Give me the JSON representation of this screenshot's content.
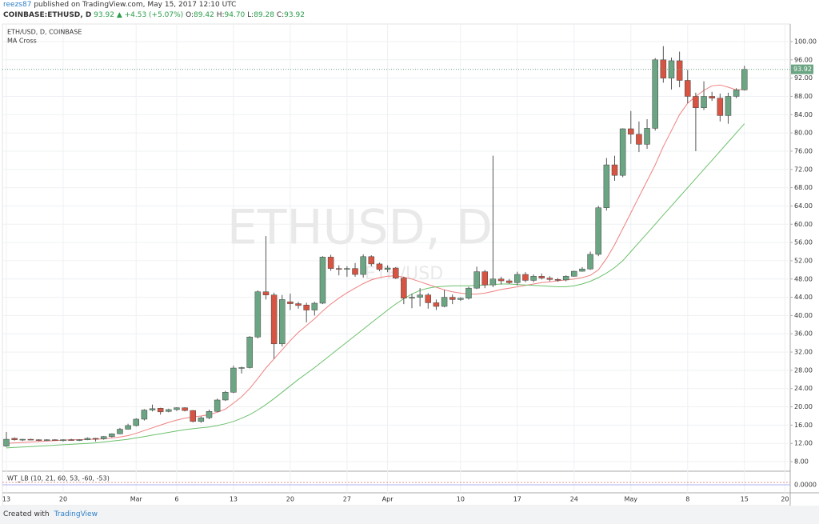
{
  "header": {
    "author": "reezs87",
    "published": "published on TradingView.com, May 15, 2017 12:10 UTC",
    "symbol": "COINBASE:ETHUSD, D",
    "last": "93.92",
    "change": "▲ +4.53 (+5.07%)",
    "ohlc": [
      {
        "label": "O:",
        "value": "89.42"
      },
      {
        "label": "H:",
        "value": "94.70"
      },
      {
        "label": "L:",
        "value": "89.28"
      },
      {
        "label": "C:",
        "value": "93.92"
      }
    ]
  },
  "footer": {
    "created": "Created with",
    "brand": "TradingView"
  },
  "indicator": {
    "label": "WT_LB (10, 21, 60, 53, -60, -53)",
    "tick": "0.0000"
  },
  "chart_data": {
    "type": "candlestick",
    "title": "ETH/USD, D, COINBASE",
    "subtitle": "MA Cross",
    "watermark": "ETHUSD, D",
    "watermark_sub": "ETH/USD",
    "categories": [
      "13",
      null,
      null,
      null,
      null,
      null,
      null,
      "20",
      null,
      null,
      null,
      null,
      null,
      null,
      null,
      null,
      "Mar",
      null,
      null,
      null,
      null,
      "6",
      null,
      null,
      null,
      null,
      null,
      null,
      "13",
      null,
      null,
      null,
      null,
      null,
      null,
      "20",
      null,
      null,
      null,
      null,
      null,
      null,
      "27",
      null,
      null,
      null,
      null,
      "Apr",
      null,
      null,
      null,
      null,
      null,
      null,
      null,
      null,
      "10",
      null,
      null,
      null,
      null,
      null,
      null,
      "17",
      null,
      null,
      null,
      null,
      null,
      null,
      "24",
      null,
      null,
      null,
      null,
      null,
      null,
      "May",
      null,
      null,
      null,
      null,
      null,
      null,
      "8",
      null,
      null,
      null,
      null,
      null,
      null,
      "15",
      null,
      null,
      null,
      null,
      "20"
    ],
    "open": [
      11.4,
      13.1,
      12.8,
      12.9,
      12.8,
      12.7,
      12.8,
      12.6,
      12.8,
      12.7,
      12.8,
      13.1,
      13.0,
      13.5,
      14.1,
      15.1,
      15.9,
      17.3,
      19.3,
      19.7,
      19.0,
      19.4,
      19.8,
      19.2,
      16.8,
      17.6,
      19.0,
      21.5,
      23.2,
      28.5,
      28.6,
      35.3,
      45.2,
      44.5,
      33.8,
      43.0,
      42.6,
      42.3,
      41.2,
      42.7,
      52.8,
      50.3,
      50.2,
      50.3,
      49.0,
      52.9,
      51.3,
      50.1,
      50.4,
      48.2,
      43.8,
      44.0,
      44.5,
      42.8,
      42.0,
      44.0,
      43.5,
      43.8,
      46.0,
      49.6,
      46.7,
      48.0,
      47.6,
      47.2,
      49.0,
      47.7,
      48.6,
      48.2,
      47.9,
      47.8,
      48.6,
      49.7,
      50.2,
      53.4,
      63.6,
      73.0,
      70.7,
      80.9,
      79.7,
      77.5,
      81.0,
      96.0,
      92.0,
      95.8,
      91.5,
      88.0,
      85.5,
      88.0,
      87.6,
      83.8,
      88.0,
      89.42,
      null,
      null,
      null,
      null,
      null
    ],
    "high": [
      14.5,
      13.3,
      13.0,
      13.0,
      12.9,
      12.9,
      12.9,
      12.9,
      13.0,
      12.9,
      13.3,
      13.2,
      13.6,
      14.2,
      15.4,
      16.3,
      17.5,
      19.5,
      20.5,
      19.8,
      19.6,
      19.9,
      19.9,
      19.3,
      17.9,
      19.4,
      21.8,
      23.5,
      29.0,
      28.8,
      35.5,
      45.5,
      57.4,
      45.0,
      44.5,
      44.8,
      43.0,
      42.8,
      43.0,
      53.0,
      53.3,
      51.0,
      50.8,
      51.5,
      53.4,
      53.2,
      51.6,
      51.0,
      50.6,
      48.5,
      44.8,
      46.0,
      44.9,
      43.5,
      45.6,
      44.6,
      44.0,
      46.3,
      50.7,
      50.0,
      75.0,
      48.5,
      48.0,
      49.6,
      49.5,
      49.0,
      49.2,
      48.6,
      48.2,
      48.8,
      49.8,
      50.6,
      54.0,
      64.0,
      74.5,
      75.0,
      81.0,
      84.8,
      82.5,
      83.0,
      96.4,
      99.0,
      96.5,
      97.8,
      93.8,
      88.8,
      91.3,
      89.0,
      88.6,
      88.8,
      89.8,
      94.7,
      null,
      null,
      null,
      null,
      null
    ],
    "low": [
      11.2,
      12.6,
      12.5,
      12.7,
      12.5,
      12.6,
      12.6,
      12.4,
      12.6,
      12.5,
      12.7,
      12.4,
      12.8,
      13.3,
      14.0,
      15.0,
      15.7,
      17.0,
      19.0,
      18.3,
      18.8,
      19.1,
      19.0,
      16.6,
      16.5,
      17.3,
      18.9,
      21.3,
      23.0,
      27.3,
      28.4,
      35.0,
      43.5,
      30.5,
      33.2,
      41.2,
      41.5,
      38.5,
      40.0,
      42.5,
      49.8,
      48.8,
      48.5,
      48.5,
      48.3,
      50.8,
      49.7,
      49.5,
      48.0,
      42.5,
      41.6,
      42.0,
      41.5,
      41.2,
      41.8,
      42.5,
      43.2,
      43.5,
      45.8,
      46.0,
      46.2,
      46.8,
      46.9,
      46.6,
      47.3,
      47.3,
      47.9,
      47.5,
      47.4,
      47.5,
      48.5,
      49.6,
      50.0,
      53.0,
      63.0,
      69.5,
      70.3,
      77.6,
      75.8,
      76.5,
      80.5,
      91.0,
      89.5,
      90.0,
      86.5,
      76.0,
      85.0,
      87.0,
      82.5,
      82.0,
      87.6,
      89.28,
      null,
      null,
      null,
      null,
      null
    ],
    "close": [
      12.9,
      12.8,
      12.9,
      12.8,
      12.7,
      12.8,
      12.7,
      12.8,
      12.7,
      12.8,
      13.1,
      13.0,
      13.5,
      14.1,
      15.1,
      15.9,
      17.3,
      19.3,
      19.6,
      18.9,
      19.4,
      19.8,
      19.2,
      16.8,
      17.6,
      19.0,
      21.5,
      23.2,
      28.5,
      28.6,
      35.3,
      45.2,
      44.5,
      33.8,
      43.5,
      42.6,
      42.2,
      41.2,
      42.7,
      52.8,
      50.3,
      50.2,
      50.3,
      49.0,
      52.9,
      51.3,
      50.1,
      50.4,
      48.2,
      43.8,
      44.0,
      44.5,
      42.8,
      42.0,
      44.0,
      43.5,
      43.8,
      46.0,
      49.6,
      46.7,
      48.0,
      47.6,
      47.2,
      49.0,
      47.7,
      48.6,
      48.2,
      47.9,
      47.8,
      48.6,
      49.7,
      50.2,
      53.4,
      63.6,
      73.0,
      70.7,
      80.9,
      79.7,
      77.5,
      81.0,
      96.0,
      92.0,
      95.8,
      91.5,
      88.0,
      85.5,
      88.0,
      87.6,
      83.8,
      88.0,
      89.4,
      93.92,
      null,
      null,
      null,
      null,
      null
    ],
    "up_color": "#6ba583",
    "down_color": "#d75442",
    "lines": [
      {
        "color": "#f08080",
        "values": [
          12.0,
          12.1,
          12.2,
          12.3,
          12.4,
          12.5,
          12.6,
          12.7,
          12.8,
          12.8,
          12.9,
          12.9,
          13.0,
          13.2,
          13.4,
          13.7,
          14.2,
          14.8,
          15.4,
          16.0,
          16.6,
          17.1,
          17.5,
          17.8,
          18.0,
          18.3,
          18.8,
          19.5,
          20.8,
          22.2,
          24.0,
          26.2,
          28.5,
          30.5,
          32.5,
          34.5,
          36.3,
          37.8,
          39.3,
          41.0,
          42.5,
          43.8,
          45.0,
          46.0,
          47.0,
          47.8,
          48.3,
          48.6,
          48.7,
          48.4,
          48.0,
          47.4,
          46.8,
          46.2,
          45.6,
          45.2,
          44.9,
          44.7,
          44.7,
          44.9,
          45.3,
          45.7,
          46.0,
          46.3,
          46.6,
          46.9,
          47.2,
          47.4,
          47.6,
          47.8,
          48.0,
          48.3,
          48.8,
          50.0,
          52.5,
          55.5,
          59.0,
          62.5,
          66.0,
          69.5,
          73.0,
          77.0,
          80.5,
          84.0,
          86.5,
          88.0,
          89.3,
          90.3,
          90.5,
          90.0,
          89.4,
          89.6,
          null,
          null,
          null,
          null,
          null
        ]
      },
      {
        "color": "#6cc06c",
        "values": [
          11.0,
          11.1,
          11.2,
          11.3,
          11.4,
          11.5,
          11.6,
          11.7,
          11.8,
          11.9,
          12.0,
          12.1,
          12.3,
          12.5,
          12.7,
          12.9,
          13.2,
          13.5,
          13.8,
          14.1,
          14.4,
          14.7,
          15.0,
          15.2,
          15.4,
          15.6,
          15.9,
          16.3,
          16.8,
          17.5,
          18.3,
          19.3,
          20.5,
          21.8,
          23.2,
          24.6,
          26.0,
          27.3,
          28.6,
          30.0,
          31.4,
          32.8,
          34.2,
          35.6,
          37.0,
          38.4,
          39.8,
          41.2,
          42.5,
          43.7,
          44.7,
          45.5,
          46.0,
          46.3,
          46.4,
          46.5,
          46.5,
          46.5,
          46.6,
          46.7,
          46.8,
          46.9,
          46.9,
          46.8,
          46.7,
          46.6,
          46.5,
          46.4,
          46.3,
          46.3,
          46.5,
          46.9,
          47.5,
          48.3,
          49.3,
          50.5,
          52.0,
          54.0,
          56.0,
          58.0,
          60.0,
          62.0,
          64.0,
          66.0,
          68.0,
          70.0,
          72.0,
          74.0,
          76.0,
          78.0,
          80.0,
          82.0,
          null,
          null,
          null,
          null,
          null
        ]
      }
    ],
    "ylim": [
      6.08,
      103.85
    ],
    "yticks": [
      {
        "value": 8,
        "label": "8.00"
      },
      {
        "value": 12,
        "label": "12.00"
      },
      {
        "value": 16,
        "label": "16.00"
      },
      {
        "value": 20,
        "label": "20.00"
      },
      {
        "value": 24,
        "label": "24.00"
      },
      {
        "value": 28,
        "label": "28.00"
      },
      {
        "value": 32,
        "label": "32.00"
      },
      {
        "value": 36,
        "label": "36.00"
      },
      {
        "value": 40,
        "label": "40.00"
      },
      {
        "value": 44,
        "label": "44.00"
      },
      {
        "value": 48,
        "label": "48.00"
      },
      {
        "value": 52,
        "label": "52.00"
      },
      {
        "value": 56,
        "label": "56.00"
      },
      {
        "value": 60,
        "label": "60.00"
      },
      {
        "value": 64,
        "label": "64.00"
      },
      {
        "value": 68,
        "label": "68.00"
      },
      {
        "value": 72,
        "label": "72.00"
      },
      {
        "value": 76,
        "label": "76.00"
      },
      {
        "value": 80,
        "label": "80.00"
      },
      {
        "value": 84,
        "label": "84.00"
      },
      {
        "value": 88,
        "label": "88.00"
      },
      {
        "value": 92,
        "label": "92.00"
      },
      {
        "value": 96,
        "label": "96.00"
      },
      {
        "value": 100,
        "label": "100.00"
      }
    ],
    "grid": true,
    "last_color": "#6ba583"
  }
}
